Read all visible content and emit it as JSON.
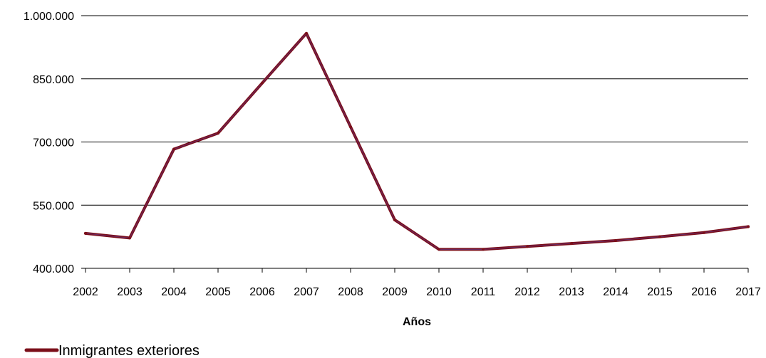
{
  "chart_data": {
    "type": "line",
    "title": "",
    "xlabel": "Años",
    "ylabel": "",
    "x": [
      "2002",
      "2003",
      "2004",
      "2005",
      "2006",
      "2007",
      "2008",
      "2009",
      "2010",
      "2011",
      "2012",
      "2013",
      "2014",
      "2015",
      "2016",
      "2017"
    ],
    "ylim": [
      400000,
      1000000
    ],
    "yticks": [
      400000,
      550000,
      700000,
      850000,
      1000000
    ],
    "ytick_labels": [
      "400.000",
      "550.000",
      "700.000",
      "850.000",
      "1.000.000"
    ],
    "grid": true,
    "legend": "bottom-left",
    "series": [
      {
        "name": "Inmigrantes exteriores",
        "color": "#7b0f1a",
        "values": [
          483000,
          472000,
          683000,
          721000,
          840000,
          958000,
          736000,
          515000,
          445000,
          445000,
          452000,
          459000,
          466000,
          475000,
          485000,
          499000
        ]
      }
    ]
  }
}
